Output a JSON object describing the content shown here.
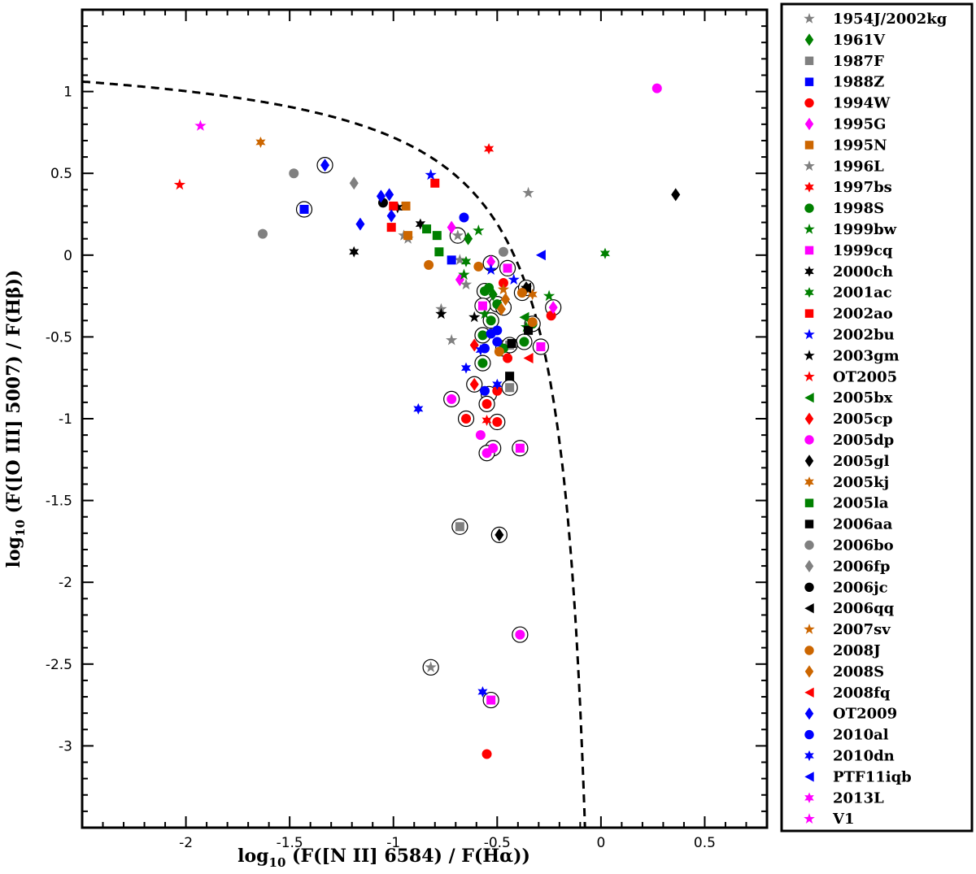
{
  "chart_data": {
    "type": "scatter",
    "title": "",
    "xlabel": {
      "prefix": "log",
      "sub": "10",
      "text": " (F([N II] 6584) / F(H",
      "greek": "α",
      "suffix": "))"
    },
    "ylabel": {
      "prefix": "log",
      "sub": "10",
      "text": " (F([O III] 5007) / F(H",
      "greek": "β",
      "suffix": "))"
    },
    "xlim": [
      -2.5,
      0.8
    ],
    "ylim": [
      -3.5,
      1.5
    ],
    "xticks": [
      {
        "v": -2,
        "label": "-2"
      },
      {
        "v": -1.5,
        "label": "-1.5"
      },
      {
        "v": -1,
        "label": "-1"
      },
      {
        "v": -0.5,
        "label": "-0.5"
      },
      {
        "v": 0,
        "label": "0"
      },
      {
        "v": 0.5,
        "label": "0.5"
      }
    ],
    "yticks": [
      {
        "v": 1,
        "label": "1"
      },
      {
        "v": 0.5,
        "label": "0.5"
      },
      {
        "v": 0,
        "label": "0"
      },
      {
        "v": -0.5,
        "label": "-0.5"
      },
      {
        "v": -1,
        "label": "-1"
      },
      {
        "v": -1.5,
        "label": "-1.5"
      },
      {
        "v": -2,
        "label": "-2"
      },
      {
        "v": -2.5,
        "label": "-2.5"
      },
      {
        "v": -3,
        "label": "-3"
      }
    ],
    "curve": {
      "style": "dashed",
      "formula": "y = 0.61/(x - 0.05) + 1.3"
    },
    "legend_placement": "outside-right",
    "series": [
      {
        "name": "1954J/2002kg",
        "marker": "star5",
        "color": "#808080",
        "points": [
          [
            -0.93,
            0.1
          ],
          [
            -0.95,
            0.12
          ],
          [
            -0.82,
            -2.52
          ],
          [
            -0.35,
            0.38
          ],
          [
            -0.68,
            -0.03
          ],
          [
            -0.77,
            -0.33
          ],
          [
            -0.72,
            -0.52
          ]
        ]
      },
      {
        "name": "1961V",
        "marker": "diamond",
        "color": "#008000",
        "points": [
          [
            -0.64,
            0.1
          ],
          [
            -0.52,
            -0.24
          ]
        ]
      },
      {
        "name": "1987F",
        "marker": "square",
        "color": "#808080",
        "points": [
          [
            -0.68,
            -1.66
          ],
          [
            -0.44,
            -0.81
          ],
          [
            -0.44,
            -0.55
          ]
        ]
      },
      {
        "name": "1988Z",
        "marker": "square",
        "color": "#0000ff",
        "points": [
          [
            -1.43,
            0.28
          ],
          [
            -0.72,
            -0.03
          ]
        ]
      },
      {
        "name": "1994W",
        "marker": "circle",
        "color": "#ff0000",
        "points": [
          [
            -0.55,
            -3.05
          ],
          [
            -0.65,
            -1.0
          ],
          [
            -0.5,
            -1.02
          ],
          [
            -0.55,
            -0.91
          ],
          [
            -0.5,
            -0.83
          ],
          [
            -0.45,
            -0.63
          ],
          [
            -0.47,
            -0.17
          ],
          [
            -0.24,
            -0.37
          ]
        ]
      },
      {
        "name": "1995G",
        "marker": "diamond",
        "color": "#ff00ff",
        "points": [
          [
            -0.72,
            0.17
          ],
          [
            -0.68,
            -0.15
          ],
          [
            -0.23,
            -0.32
          ],
          [
            -0.53,
            -0.04
          ]
        ]
      },
      {
        "name": "1995N",
        "marker": "square",
        "color": "#cc6600",
        "points": [
          [
            -0.94,
            0.3
          ],
          [
            -0.93,
            0.12
          ]
        ]
      },
      {
        "name": "1996L",
        "marker": "star5",
        "color": "#808080",
        "points": [
          [
            -0.69,
            0.12
          ],
          [
            -0.65,
            -0.18
          ]
        ]
      },
      {
        "name": "1997bs",
        "marker": "star6",
        "color": "#ff0000",
        "points": [
          [
            -0.54,
            0.65
          ],
          [
            -0.55,
            -1.01
          ]
        ]
      },
      {
        "name": "1998S",
        "marker": "circle",
        "color": "#008000",
        "points": [
          [
            -0.56,
            -0.22
          ],
          [
            -0.53,
            -0.4
          ],
          [
            -0.5,
            -0.3
          ],
          [
            -0.57,
            -0.49
          ],
          [
            -0.57,
            -0.66
          ],
          [
            -0.47,
            -0.57
          ],
          [
            -0.37,
            -0.53
          ],
          [
            -0.54,
            -0.2
          ],
          [
            -0.33,
            -0.42
          ]
        ]
      },
      {
        "name": "1999bw",
        "marker": "star5",
        "color": "#008000",
        "points": [
          [
            -0.59,
            0.15
          ],
          [
            -0.66,
            -0.12
          ],
          [
            -0.25,
            -0.25
          ],
          [
            -0.36,
            -0.44
          ],
          [
            -0.56,
            -0.36
          ]
        ]
      },
      {
        "name": "1999cq",
        "marker": "square",
        "color": "#ff00ff",
        "points": [
          [
            -0.53,
            -2.72
          ],
          [
            -0.39,
            -1.18
          ],
          [
            -0.29,
            -0.56
          ],
          [
            -0.45,
            -0.08
          ],
          [
            -0.57,
            -0.31
          ]
        ]
      },
      {
        "name": "2000ch",
        "marker": "star6",
        "color": "#000000",
        "points": [
          [
            -1.19,
            0.02
          ],
          [
            -0.87,
            0.19
          ],
          [
            -0.98,
            0.29
          ]
        ]
      },
      {
        "name": "2001ac",
        "marker": "star6",
        "color": "#008000",
        "points": [
          [
            0.02,
            0.01
          ],
          [
            -0.65,
            -0.04
          ]
        ]
      },
      {
        "name": "2002ao",
        "marker": "square",
        "color": "#ff0000",
        "points": [
          [
            -0.8,
            0.44
          ],
          [
            -1.01,
            0.17
          ],
          [
            -1.0,
            0.3
          ]
        ]
      },
      {
        "name": "2002bu",
        "marker": "star5",
        "color": "#0000ff",
        "points": [
          [
            -0.82,
            0.49
          ],
          [
            -0.53,
            -0.09
          ],
          [
            -0.42,
            -0.15
          ]
        ]
      },
      {
        "name": "2003gm",
        "marker": "star5",
        "color": "#000000",
        "points": [
          [
            -0.77,
            -0.36
          ],
          [
            -0.61,
            -0.38
          ],
          [
            -0.36,
            -0.2
          ]
        ]
      },
      {
        "name": "OT2005",
        "marker": "star5",
        "color": "#ff0000",
        "points": [
          [
            -2.03,
            0.43
          ]
        ]
      },
      {
        "name": "2005bx",
        "marker": "tri-left",
        "color": "#008000",
        "points": [
          [
            -0.37,
            -0.38
          ]
        ]
      },
      {
        "name": "2005cp",
        "marker": "diamond",
        "color": "#ff0000",
        "points": [
          [
            -0.61,
            -0.79
          ],
          [
            -0.61,
            -0.55
          ]
        ]
      },
      {
        "name": "2005dp",
        "marker": "circle",
        "color": "#ff00ff",
        "points": [
          [
            0.27,
            1.02
          ],
          [
            -0.39,
            -2.32
          ],
          [
            -0.72,
            -0.88
          ],
          [
            -0.58,
            -1.1
          ],
          [
            -0.52,
            -1.18
          ],
          [
            -0.55,
            -1.21
          ]
        ]
      },
      {
        "name": "2005gl",
        "marker": "diamond",
        "color": "#000000",
        "points": [
          [
            0.36,
            0.37
          ],
          [
            -0.49,
            -1.71
          ],
          [
            -0.36,
            -0.2
          ]
        ]
      },
      {
        "name": "2005kj",
        "marker": "star6",
        "color": "#cc6600",
        "points": [
          [
            -1.64,
            0.69
          ],
          [
            -0.33,
            -0.24
          ]
        ]
      },
      {
        "name": "2005la",
        "marker": "square",
        "color": "#008000",
        "points": [
          [
            -0.84,
            0.16
          ],
          [
            -0.79,
            0.12
          ],
          [
            -0.78,
            0.02
          ]
        ]
      },
      {
        "name": "2006aa",
        "marker": "square",
        "color": "#000000",
        "points": [
          [
            -0.44,
            -0.74
          ],
          [
            -0.43,
            -0.54
          ],
          [
            -0.35,
            -0.46
          ]
        ]
      },
      {
        "name": "2006bo",
        "marker": "circle",
        "color": "#808080",
        "points": [
          [
            -1.63,
            0.13
          ],
          [
            -1.48,
            0.5
          ],
          [
            -0.47,
            0.02
          ]
        ]
      },
      {
        "name": "2006fp",
        "marker": "diamond",
        "color": "#808080",
        "points": [
          [
            -1.19,
            0.44
          ]
        ]
      },
      {
        "name": "2006jc",
        "marker": "circle",
        "color": "#000000",
        "points": [
          [
            -1.05,
            0.32
          ]
        ]
      },
      {
        "name": "2006qq",
        "marker": "tri-left",
        "color": "#000000",
        "points": [
          [
            -0.36,
            -0.2
          ]
        ]
      },
      {
        "name": "2007sv",
        "marker": "star5",
        "color": "#cc6600",
        "points": [
          [
            -0.47,
            -0.21
          ]
        ]
      },
      {
        "name": "2008J",
        "marker": "circle",
        "color": "#cc6600",
        "points": [
          [
            -0.83,
            -0.06
          ],
          [
            -0.59,
            -0.07
          ],
          [
            -0.49,
            -0.59
          ],
          [
            -0.38,
            -0.23
          ],
          [
            -0.33,
            -0.41
          ]
        ]
      },
      {
        "name": "2008S",
        "marker": "diamond",
        "color": "#cc6600",
        "points": [
          [
            -0.48,
            -0.33
          ],
          [
            -0.46,
            -0.27
          ]
        ]
      },
      {
        "name": "2008fq",
        "marker": "tri-left",
        "color": "#ff0000",
        "points": [
          [
            -0.35,
            -0.63
          ]
        ]
      },
      {
        "name": "OT2009",
        "marker": "diamond",
        "color": "#0000ff",
        "points": [
          [
            -1.33,
            0.55
          ],
          [
            -1.16,
            0.19
          ],
          [
            -1.06,
            0.36
          ],
          [
            -1.02,
            0.37
          ],
          [
            -1.01,
            0.24
          ]
        ]
      },
      {
        "name": "2010al",
        "marker": "circle",
        "color": "#0000ff",
        "points": [
          [
            -0.66,
            0.23
          ],
          [
            -0.53,
            -0.48
          ],
          [
            -0.5,
            -0.46
          ],
          [
            -0.5,
            -0.53
          ],
          [
            -0.56,
            -0.83
          ],
          [
            -0.56,
            -0.57
          ]
        ]
      },
      {
        "name": "2010dn",
        "marker": "star6",
        "color": "#0000ff",
        "points": [
          [
            -0.88,
            -0.94
          ],
          [
            -0.57,
            -2.67
          ],
          [
            -0.65,
            -0.69
          ],
          [
            -0.5,
            -0.79
          ],
          [
            -0.58,
            -0.58
          ]
        ]
      },
      {
        "name": "PTF11iqb",
        "marker": "tri-left",
        "color": "#0000ff",
        "points": [
          [
            -0.29,
            0.0
          ]
        ]
      },
      {
        "name": "2013L",
        "marker": "star6",
        "color": "#ff00ff",
        "points": []
      },
      {
        "name": "V1",
        "marker": "star5",
        "color": "#ff00ff",
        "points": [
          [
            -1.93,
            0.79
          ]
        ]
      }
    ],
    "outlined_markers": [
      [
        -1.33,
        0.55
      ],
      [
        -1.43,
        0.28
      ],
      [
        -0.69,
        0.12
      ],
      [
        -0.53,
        -0.4
      ],
      [
        -0.5,
        -0.3
      ],
      [
        -0.57,
        -0.49
      ],
      [
        -0.57,
        -0.66
      ],
      [
        -0.47,
        -0.57
      ],
      [
        -0.37,
        -0.53
      ],
      [
        -0.56,
        -0.22
      ],
      [
        -0.38,
        -0.23
      ],
      [
        -0.33,
        -0.42
      ],
      [
        -0.23,
        -0.32
      ],
      [
        -0.45,
        -0.08
      ],
      [
        -0.57,
        -0.31
      ],
      [
        -0.29,
        -0.56
      ],
      [
        -0.44,
        -0.55
      ],
      [
        -0.44,
        -0.81
      ],
      [
        -0.54,
        -0.85
      ],
      [
        -0.65,
        -1.0
      ],
      [
        -0.5,
        -1.02
      ],
      [
        -0.55,
        -0.91
      ],
      [
        -0.52,
        -1.18
      ],
      [
        -0.55,
        -1.21
      ],
      [
        -0.72,
        -0.88
      ],
      [
        -0.39,
        -1.18
      ],
      [
        -0.68,
        -1.66
      ],
      [
        -0.49,
        -1.71
      ],
      [
        -0.39,
        -2.32
      ],
      [
        -0.53,
        -2.72
      ],
      [
        -0.82,
        -2.52
      ],
      [
        -0.36,
        -0.2
      ],
      [
        -0.61,
        -0.79
      ],
      [
        -0.47,
        -0.32
      ],
      [
        -0.53,
        -0.05
      ]
    ]
  }
}
